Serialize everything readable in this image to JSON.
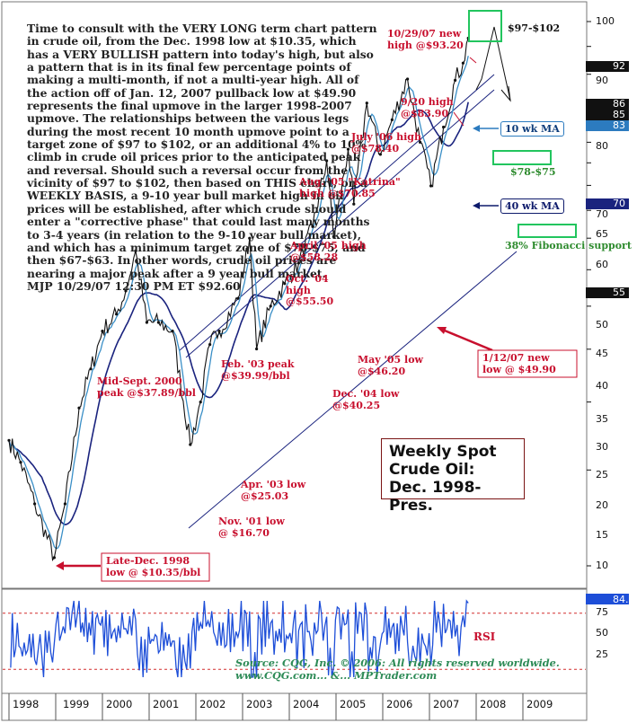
{
  "commentary": "Time to consult with the VERY LONG term chart pattern in crude oil, from the Dec. 1998 low at $10.35, which has a VERY BULLISH pattern into today's high, but also a pattern that is in its final few percentage points of making a multi-month, if not a multi-year high. All of the action off of Jan. 12, 2007 pullback low at $49.90 represents the final upmove in the larger 1998-2007 upmove. The relationships between the various legs during the most recent 10 month upmove point to a target zone of $97 to $102, or an additional 4% to 10% climb in crude oil prices prior to the anticipated peak and reversal. Should such a reversal occur from the vicinity of $97 to $102, then based on THIS chart, on a WEEKLY BASIS, a 9-10 year bull market high in oil prices will be established, after which crude should enter a \"corrective phase\" that could last many months to 3-4 years (in relation to the 9-10 year bull market), and which has a minimum target zone of $78-$75, and then $67-$63. In other words, crude oil prices are nearing a major peak after a 9 year bull market.",
  "signature": "MJP  10/29/07 12:30 PM ET $92.60",
  "title": [
    "Weekly Spot",
    "Crude Oil:",
    "Dec. 1998-Pres."
  ],
  "source": [
    "Source: CQG, Inc. © 2006: All rights reserved worldwide.",
    "www.CQG.com... &... MPTrader.com"
  ],
  "annotations": {
    "high_1029": "10/29/07 new\nhigh @$93.20",
    "high_0920": "9/20 high\n@$83.90",
    "high_jul06": "July '06 high\n@$78.40",
    "high_aug05": "Aug. '05 \"Katrina\"\nhigh @$70.85",
    "high_apr05": "April '05 high\n@$58.28",
    "high_oct04": "Oct. '04\nhigh\n@$55.50",
    "low_may05": "May '05 low\n@$46.20",
    "low_dec04": "Dec. '04 low\n@$40.25",
    "high_feb03": "Feb. '03 peak\n@$39.99/bbl",
    "low_apr03": "Apr. '03 low\n@$25.03",
    "high_sep00": "Mid-Sept. 2000\npeak @$37.89/bbl",
    "low_nov01": "Nov. '01 low\n@ $16.70",
    "low_dec98": "Late-Dec. 1998\nlow @ $10.35/bbl",
    "low_jan07": "1/12/07 new\nlow @ $49.90",
    "target_top": "$97-$102",
    "target_mid": "$78-$75",
    "fib": "38% Fibonacci\nsupport",
    "ma10": "10 wk MA",
    "ma40": "40 wk MA",
    "rsi": "RSI"
  },
  "y_axis_labels": [
    "100",
    "90",
    "80",
    "70",
    "65",
    "60",
    "55",
    "50",
    "45",
    "40",
    "35",
    "30",
    "25",
    "20",
    "15",
    "10"
  ],
  "price_boxes": [
    "92",
    "86",
    "85",
    "83",
    "70",
    "55"
  ],
  "rsi_axis_labels": [
    "75",
    "50",
    "25"
  ],
  "rsi_box": "84.",
  "x_axis_labels": [
    "1998",
    "1999",
    "2000",
    "2001",
    "2002",
    "2003",
    "2004",
    "2005",
    "2006",
    "2007",
    "2008",
    "2009"
  ],
  "colors": {
    "annotation": "#c8102e",
    "price_bars": "#111111",
    "ma10": "#3a8fc7",
    "ma40": "#1a237e",
    "channel": "#1a237e",
    "target_box": "#22c55e",
    "rsi_line": "#1d4ed8",
    "rsi_band": "#d32f2f",
    "price_box_bg": "#111111",
    "rsi_box_bg": "#1d4ed8"
  },
  "chart_data": {
    "type": "line",
    "scale": "log",
    "ylim": [
      9,
      105
    ],
    "xlim": [
      1998.0,
      2010.0
    ],
    "series": [
      {
        "name": "Weekly Spot Crude Oil",
        "x": [
          1998.0,
          1998.25,
          1998.55,
          1998.97,
          1999.2,
          1999.5,
          1999.75,
          2000.0,
          2000.3,
          2000.5,
          2000.71,
          2000.95,
          2001.2,
          2001.5,
          2001.88,
          2002.1,
          2002.3,
          2002.5,
          2002.9,
          2003.15,
          2003.3,
          2003.6,
          2003.9,
          2004.2,
          2004.5,
          2004.8,
          2004.95,
          2005.26,
          2005.38,
          2005.66,
          2005.95,
          2006.2,
          2006.53,
          2006.8,
          2007.03,
          2007.3,
          2007.55,
          2007.72,
          2007.83
        ],
        "values": [
          17.0,
          15.5,
          13.0,
          10.35,
          13.0,
          19.5,
          23.0,
          27.0,
          29.0,
          32.0,
          37.89,
          28.0,
          28.0,
          27.0,
          16.7,
          20.0,
          25.5,
          27.0,
          31.0,
          39.99,
          25.03,
          30.0,
          33.0,
          36.0,
          42.0,
          55.5,
          40.25,
          58.28,
          46.2,
          70.85,
          57.0,
          66.0,
          78.4,
          60.0,
          49.9,
          64.0,
          78.0,
          83.9,
          93.2
        ]
      }
    ],
    "rsi": {
      "ylim": [
        10,
        90
      ],
      "bands": [
        75,
        25
      ],
      "last": 84
    }
  }
}
